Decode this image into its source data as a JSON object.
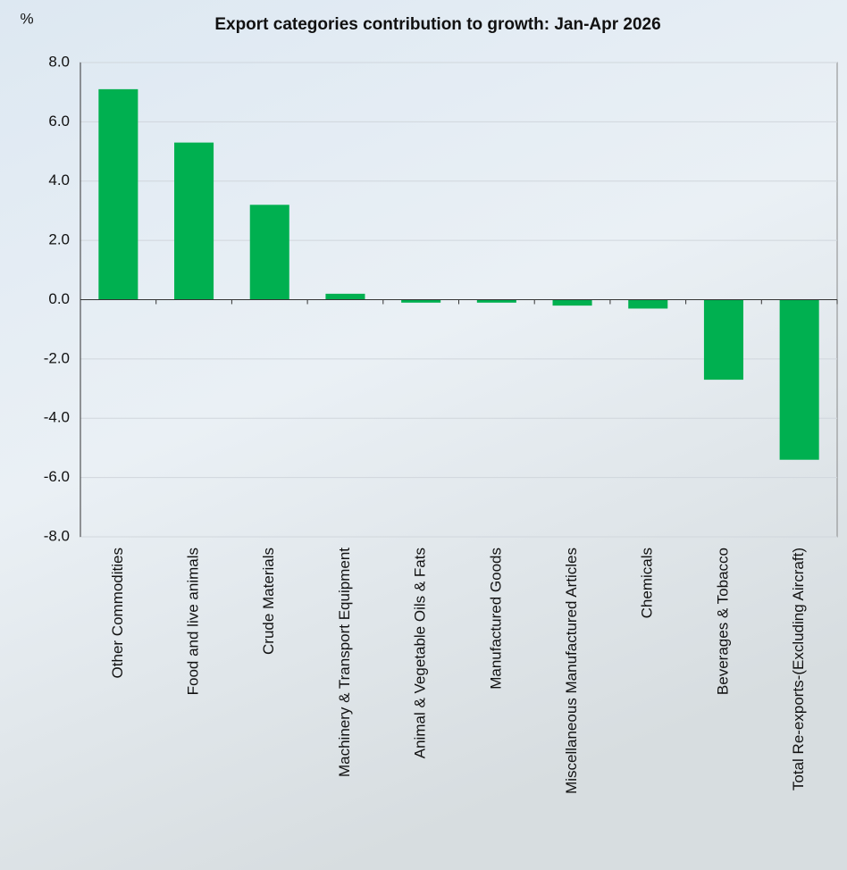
{
  "chart_data": {
    "type": "bar",
    "title": "Export categories contribution to growth: Jan-Apr 2026",
    "y_label": "%",
    "categories": [
      "Other Commodities",
      "Food and live animals",
      "Crude Materials",
      "Machinery & Transport Equipment",
      "Animal & Vegetable Oils & Fats",
      "Manufactured Goods",
      "Miscellaneous Manufactured Articles",
      "Chemicals",
      "Beverages & Tobacco",
      "Total Re-exports-(Excluding Aircraft)"
    ],
    "values": [
      7.1,
      5.3,
      3.2,
      0.2,
      -0.1,
      -0.1,
      -0.2,
      -0.3,
      -2.7,
      -5.4
    ],
    "color": "#00b050",
    "ylim": [
      -8,
      8
    ],
    "yticks": [
      {
        "value": -8,
        "label": "-8.0"
      },
      {
        "value": -6,
        "label": "-6.0"
      },
      {
        "value": -4,
        "label": "-4.0"
      },
      {
        "value": -2,
        "label": "-2.0"
      },
      {
        "value": 0,
        "label": "0.0"
      },
      {
        "value": 2,
        "label": "2.0"
      },
      {
        "value": 4,
        "label": "4.0"
      },
      {
        "value": 6,
        "label": "6.0"
      },
      {
        "value": 8,
        "label": "8.0"
      }
    ],
    "grid": true
  }
}
